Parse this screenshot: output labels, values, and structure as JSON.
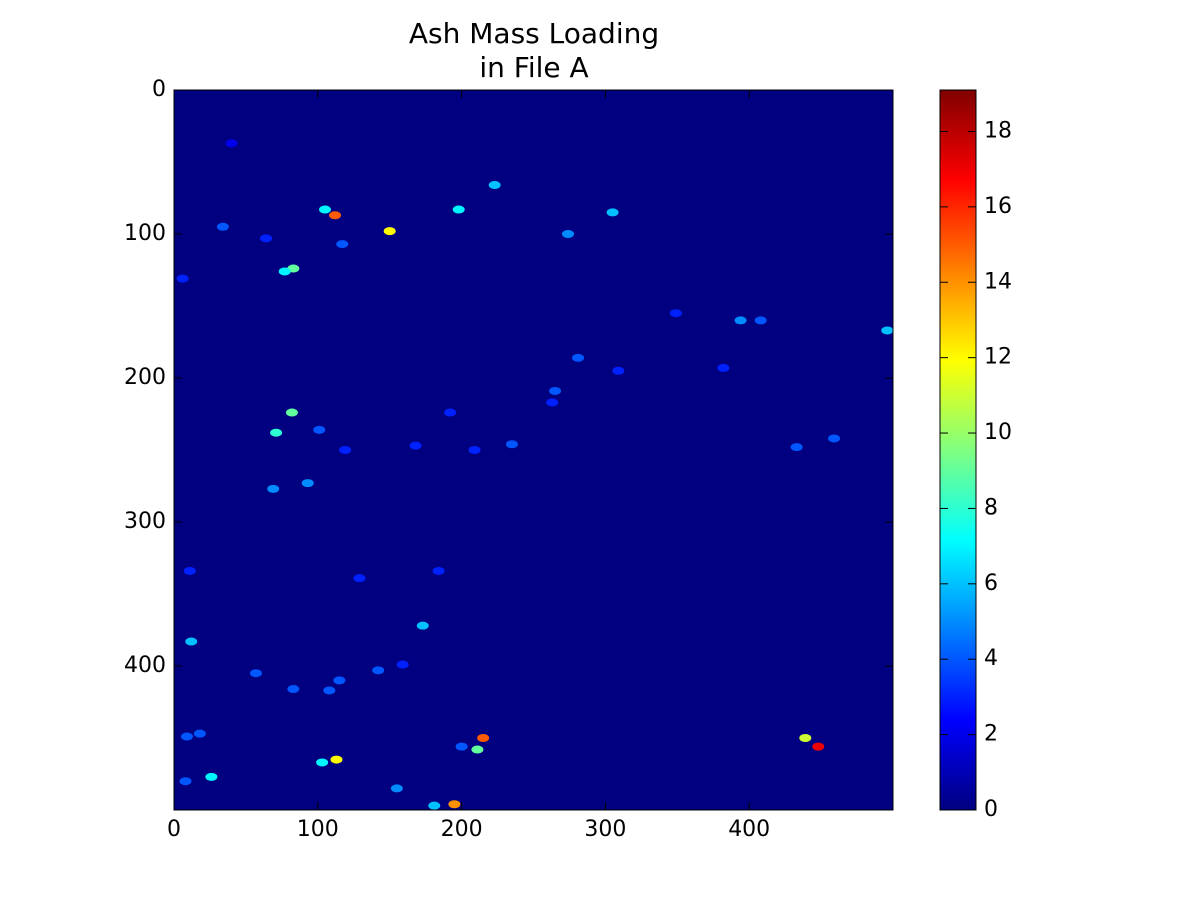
{
  "chart_data": {
    "type": "heatmap",
    "title": [
      "Ash Mass Loading",
      "in File A"
    ],
    "colormap": "jet",
    "clim": [
      0,
      19.1
    ],
    "cticks": [
      0,
      2,
      4,
      6,
      8,
      10,
      12,
      14,
      16,
      18
    ],
    "xlim": [
      0,
      500
    ],
    "ylim": [
      500,
      0
    ],
    "xticks": [
      0,
      100,
      200,
      300,
      400
    ],
    "yticks": [
      0,
      100,
      200,
      300,
      400
    ],
    "x": [
      40,
      223,
      112,
      105,
      150,
      198,
      34,
      64,
      117,
      83,
      77,
      6,
      305,
      274,
      394,
      408,
      349,
      496,
      281,
      265,
      263,
      82,
      71,
      101,
      119,
      192,
      168,
      235,
      209,
      382,
      309,
      433,
      459,
      69,
      93,
      11,
      129,
      184,
      12,
      115,
      142,
      57,
      83,
      108,
      159,
      173,
      9,
      18,
      26,
      103,
      113,
      155,
      8,
      200,
      211,
      215,
      181,
      195,
      439,
      448
    ],
    "y": [
      37,
      66,
      87,
      83,
      98,
      83,
      95,
      103,
      107,
      124,
      126,
      131,
      85,
      100,
      160,
      160,
      155,
      167,
      186,
      209,
      217,
      224,
      238,
      236,
      250,
      224,
      247,
      246,
      250,
      193,
      195,
      248,
      242,
      277,
      273,
      334,
      339,
      334,
      383,
      410,
      403,
      405,
      416,
      417,
      399,
      372,
      449,
      447,
      477,
      467,
      465,
      485,
      480,
      456,
      458,
      450,
      497,
      496,
      450,
      456
    ],
    "values": [
      2,
      6,
      15,
      7,
      12,
      7,
      4,
      3,
      4,
      9,
      7,
      3,
      6,
      5,
      5,
      4,
      3,
      6,
      4,
      4,
      3,
      9,
      8,
      4,
      3,
      3,
      3,
      4,
      3,
      3,
      3,
      4,
      4,
      5,
      5,
      3,
      3,
      3,
      6,
      4,
      4,
      4,
      4,
      4,
      3,
      6,
      4,
      4,
      7,
      7,
      12,
      5,
      4,
      4,
      9,
      15,
      6,
      14,
      11,
      17
    ]
  }
}
